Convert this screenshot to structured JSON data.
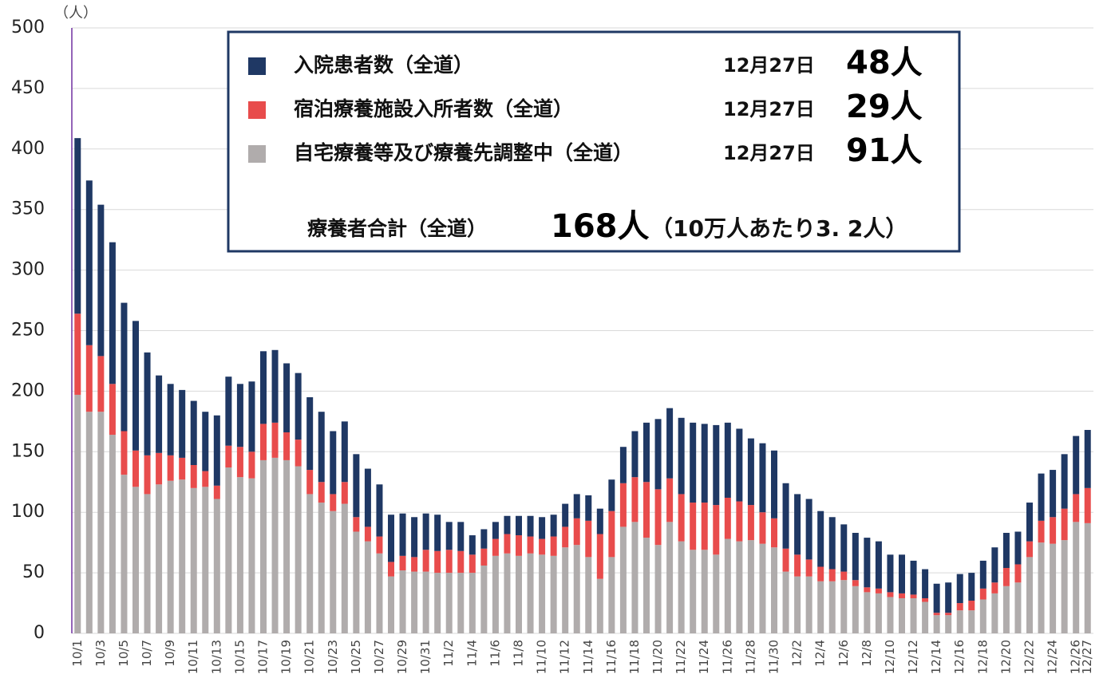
{
  "chart_data": {
    "type": "stacked_bar",
    "y_unit": "（人）",
    "categories": [
      "10/1",
      null,
      "10/3",
      null,
      "10/5",
      null,
      "10/7",
      null,
      "10/9",
      null,
      "10/11",
      null,
      "10/13",
      null,
      "10/15",
      null,
      "10/17",
      null,
      "10/19",
      null,
      "10/21",
      null,
      "10/23",
      null,
      "10/25",
      null,
      "10/27",
      null,
      "10/29",
      null,
      "10/31",
      null,
      "11/2",
      null,
      "11/4",
      null,
      "11/6",
      null,
      "11/8",
      null,
      "11/10",
      null,
      "11/12",
      null,
      "11/14",
      null,
      "11/16",
      null,
      "11/18",
      null,
      "11/20",
      null,
      "11/22",
      null,
      "11/24",
      null,
      "11/26",
      null,
      "11/28",
      null,
      "11/30",
      null,
      "12/2",
      null,
      "12/4",
      null,
      "12/6",
      null,
      "12/8",
      null,
      "12/10",
      null,
      "12/12",
      null,
      "12/14",
      null,
      "12/16",
      null,
      "12/18",
      null,
      "12/20",
      null,
      "12/22",
      null,
      "12/24",
      null,
      "12/26",
      "12/27"
    ],
    "series": [
      {
        "name": "入院患者数（全道）",
        "color": "#1f3864",
        "values": [
          145,
          136,
          125,
          117,
          106,
          107,
          85,
          64,
          59,
          56,
          53,
          49,
          58,
          57,
          52,
          58,
          60,
          60,
          57,
          55,
          60,
          58,
          52,
          50,
          52,
          48,
          43,
          39,
          35,
          33,
          30,
          30,
          23,
          24,
          16,
          16,
          14,
          15,
          16,
          17,
          18,
          18,
          19,
          20,
          21,
          21,
          26,
          30,
          38,
          49,
          58,
          58,
          63,
          66,
          65,
          66,
          62,
          60,
          55,
          57,
          56,
          54,
          50,
          50,
          46,
          43,
          39,
          39,
          41,
          39,
          31,
          32,
          28,
          24,
          24,
          25,
          24,
          23,
          23,
          29,
          29,
          27,
          32,
          39,
          39,
          45,
          48,
          48
        ]
      },
      {
        "name": "宿泊療養施設入所者数（全道）",
        "color": "#e84c4c",
        "values": [
          67,
          55,
          46,
          42,
          36,
          30,
          32,
          26,
          21,
          18,
          19,
          13,
          11,
          18,
          25,
          22,
          30,
          29,
          23,
          22,
          20,
          17,
          14,
          18,
          12,
          12,
          14,
          12,
          12,
          12,
          18,
          18,
          19,
          18,
          15,
          14,
          14,
          16,
          17,
          14,
          13,
          16,
          17,
          22,
          30,
          37,
          38,
          36,
          37,
          46,
          46,
          36,
          39,
          39,
          39,
          41,
          34,
          33,
          29,
          26,
          24,
          19,
          18,
          14,
          12,
          10,
          7,
          5,
          4,
          4,
          4,
          4,
          3,
          3,
          2,
          2,
          6,
          8,
          9,
          9,
          15,
          15,
          13,
          18,
          22,
          26,
          23,
          29
        ]
      },
      {
        "name": "自宅療養等及び療養先調整中（全道）",
        "color": "#b0acac",
        "values": [
          197,
          183,
          183,
          164,
          131,
          121,
          115,
          123,
          126,
          127,
          120,
          121,
          111,
          137,
          129,
          128,
          143,
          145,
          143,
          138,
          115,
          108,
          101,
          107,
          84,
          76,
          66,
          47,
          52,
          51,
          51,
          50,
          50,
          50,
          50,
          56,
          64,
          66,
          64,
          66,
          65,
          64,
          71,
          73,
          63,
          45,
          63,
          88,
          92,
          79,
          73,
          92,
          76,
          69,
          69,
          65,
          78,
          76,
          77,
          74,
          71,
          51,
          47,
          47,
          43,
          43,
          44,
          39,
          34,
          33,
          30,
          29,
          29,
          26,
          15,
          15,
          19,
          19,
          28,
          33,
          39,
          42,
          63,
          75,
          74,
          77,
          92,
          91
        ]
      }
    ],
    "ylim": [
      0,
      500
    ],
    "yticks": [
      0,
      50,
      100,
      150,
      200,
      250,
      300,
      350,
      400,
      450,
      500
    ],
    "grid": true,
    "legend_box": {
      "rows": [
        {
          "date": "12月27日",
          "value": "48人"
        },
        {
          "date": "12月27日",
          "value": "29人"
        },
        {
          "date": "12月27日",
          "value": "91人"
        }
      ],
      "total_label": "療養者合計（全道）",
      "total_value": "168人",
      "per_capita": "（10万人あたり3. 2人）"
    }
  }
}
